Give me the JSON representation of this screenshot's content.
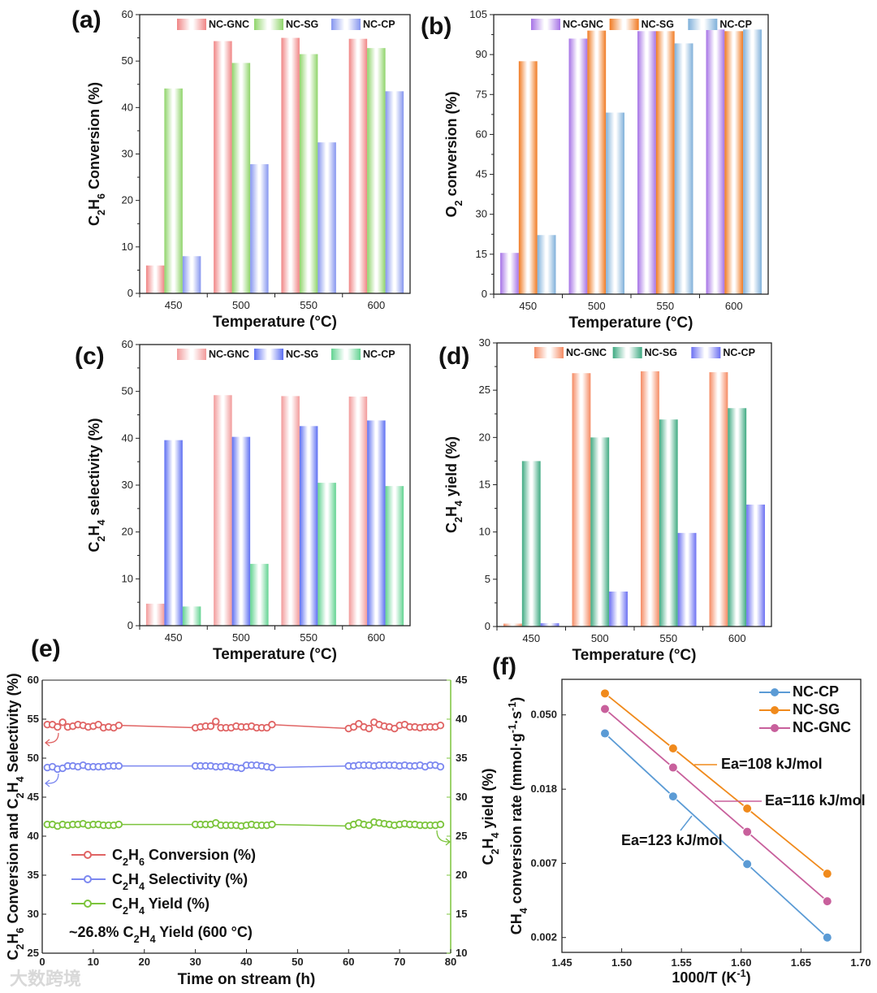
{
  "watermark": "大数跨境",
  "chart_data": [
    {
      "panel": "(a)",
      "type": "bar",
      "categories": [
        "450",
        "500",
        "550",
        "600"
      ],
      "xlabel": "Temperature (°C)",
      "ylabel": [
        [
          "C"
        ],
        [
          "2",
          "sub"
        ],
        [
          "H"
        ],
        [
          "6",
          "sub"
        ],
        [
          " Conversion (%)"
        ]
      ],
      "ylim": [
        0,
        60
      ],
      "yticks": [
        0,
        10,
        20,
        30,
        40,
        50,
        60
      ],
      "legend": "top",
      "series": [
        {
          "name": "NC-GNC",
          "color": "#f08585",
          "values": [
            6.0,
            54.3,
            55.0,
            54.8
          ]
        },
        {
          "name": "NC-SG",
          "color": "#8fd46a",
          "values": [
            44.1,
            49.6,
            51.5,
            52.8
          ]
        },
        {
          "name": "NC-CP",
          "color": "#8595ef",
          "values": [
            8.0,
            27.8,
            32.5,
            43.5
          ]
        }
      ]
    },
    {
      "panel": "(b)",
      "type": "bar",
      "categories": [
        "450",
        "500",
        "550",
        "600"
      ],
      "xlabel": "Temperature (°C)",
      "ylabel": [
        [
          "O"
        ],
        [
          "2",
          "sub"
        ],
        [
          " conversion (%)"
        ]
      ],
      "ylim": [
        0,
        105
      ],
      "yticks": [
        0,
        15,
        30,
        45,
        60,
        75,
        90,
        105
      ],
      "legend": "top",
      "series": [
        {
          "name": "NC-GNC",
          "color": "#a673e6",
          "values": [
            15.5,
            96.0,
            98.8,
            99.4
          ]
        },
        {
          "name": "NC-SG",
          "color": "#f07a22",
          "values": [
            87.5,
            99.0,
            98.8,
            98.8
          ]
        },
        {
          "name": "NC-CP",
          "color": "#7fb0da",
          "values": [
            22.2,
            68.2,
            94.2,
            99.4
          ]
        }
      ]
    },
    {
      "panel": "(c)",
      "type": "bar",
      "categories": [
        "450",
        "500",
        "550",
        "600"
      ],
      "xlabel": "Temperature (°C)",
      "ylabel": [
        [
          "C"
        ],
        [
          "2",
          "sub"
        ],
        [
          "H"
        ],
        [
          "4",
          "sub"
        ],
        [
          " selectivity (%)"
        ]
      ],
      "ylim": [
        0,
        60
      ],
      "yticks": [
        0,
        10,
        20,
        30,
        40,
        50,
        60
      ],
      "legend": "top",
      "series": [
        {
          "name": "NC-GNC",
          "color": "#f29a9a",
          "values": [
            4.7,
            49.2,
            49.0,
            48.9
          ]
        },
        {
          "name": "NC-SG",
          "color": "#5d6ff2",
          "values": [
            39.6,
            40.3,
            42.6,
            43.8
          ]
        },
        {
          "name": "NC-CP",
          "color": "#62d391",
          "values": [
            4.1,
            13.2,
            30.5,
            29.8
          ]
        }
      ]
    },
    {
      "panel": "(d)",
      "type": "bar",
      "categories": [
        "450",
        "500",
        "550",
        "600"
      ],
      "xlabel": "Temperature (°C)",
      "ylabel": [
        [
          "C"
        ],
        [
          "2",
          "sub"
        ],
        [
          "H"
        ],
        [
          "4",
          "sub"
        ],
        [
          " yield (%)"
        ]
      ],
      "ylim": [
        0,
        30
      ],
      "yticks": [
        0,
        5,
        10,
        15,
        20,
        25,
        30
      ],
      "legend": "top",
      "series": [
        {
          "name": "NC-GNC",
          "color": "#f58a62",
          "values": [
            0.3,
            26.8,
            27.0,
            26.9
          ]
        },
        {
          "name": "NC-SG",
          "color": "#3faa82",
          "values": [
            17.5,
            20.0,
            21.9,
            23.1
          ]
        },
        {
          "name": "NC-CP",
          "color": "#6b70f2",
          "values": [
            0.35,
            3.7,
            9.9,
            12.9
          ]
        }
      ]
    },
    {
      "panel": "(e)",
      "type": "line",
      "xlabel": "Time on stream (h)",
      "ylabel": [
        [
          "C"
        ],
        [
          "2",
          "sub"
        ],
        [
          "H"
        ],
        [
          "6",
          "sub"
        ],
        [
          " Conversion and C"
        ],
        [
          "2",
          "sub"
        ],
        [
          "H"
        ],
        [
          "4",
          "sub"
        ],
        [
          " Selectivity (%)"
        ]
      ],
      "ylabel_right": [
        [
          "C"
        ],
        [
          "2",
          "sub"
        ],
        [
          "H"
        ],
        [
          "4",
          "sub"
        ],
        [
          " yield (%)"
        ]
      ],
      "xlim": [
        0,
        80
      ],
      "xticks": [
        0,
        10,
        20,
        30,
        40,
        50,
        60,
        70,
        80
      ],
      "ylim": [
        25,
        60
      ],
      "yticks": [
        25,
        30,
        35,
        40,
        45,
        50,
        55,
        60
      ],
      "ylim_right": [
        10,
        45
      ],
      "yticks_right": [
        10,
        15,
        20,
        25,
        30,
        35,
        40,
        45
      ],
      "legend": "lower-left",
      "annotation": [
        [
          "~26.8% C"
        ],
        [
          "2",
          "sub"
        ],
        [
          "H"
        ],
        [
          "4",
          "sub"
        ],
        [
          " Yield (600 °C)"
        ]
      ],
      "x": [
        1,
        2,
        3,
        4,
        5,
        6,
        7,
        8,
        9,
        10,
        11,
        12,
        13,
        14,
        15,
        30,
        31,
        32,
        33,
        34,
        35,
        36,
        37,
        38,
        39,
        40,
        41,
        42,
        43,
        44,
        45,
        60,
        61,
        62,
        63,
        64,
        65,
        66,
        67,
        68,
        69,
        70,
        71,
        72,
        73,
        74,
        75,
        76,
        77,
        78
      ],
      "series": [
        {
          "name": [
            [
              "C"
            ],
            [
              "2",
              "sub"
            ],
            [
              "H"
            ],
            [
              "6",
              "sub"
            ],
            [
              " Conversion (%)"
            ]
          ],
          "axis": "left",
          "color": "#e06464",
          "values": [
            54.3,
            54.3,
            54.0,
            54.6,
            54.0,
            54.1,
            54.3,
            54.2,
            54.0,
            54.1,
            54.3,
            53.9,
            54.0,
            53.9,
            54.2,
            53.9,
            54.0,
            54.1,
            54.1,
            54.7,
            53.9,
            53.9,
            53.9,
            54.1,
            54.0,
            54.0,
            54.1,
            53.9,
            53.9,
            53.9,
            54.3,
            53.8,
            54.0,
            54.4,
            54.0,
            53.8,
            54.6,
            54.3,
            54.1,
            54.0,
            53.8,
            54.2,
            54.3,
            54.0,
            54.0,
            53.9,
            54.0,
            54.0,
            54.0,
            54.2
          ]
        },
        {
          "name": [
            [
              "C"
            ],
            [
              "2",
              "sub"
            ],
            [
              "H"
            ],
            [
              "4",
              "sub"
            ],
            [
              " Selectivity (%)"
            ]
          ],
          "axis": "left",
          "color": "#7c88f0",
          "values": [
            48.8,
            48.9,
            48.6,
            48.7,
            49.0,
            49.0,
            48.9,
            49.1,
            48.9,
            48.9,
            48.9,
            48.9,
            49.0,
            49.0,
            49.0,
            49.0,
            49.0,
            49.0,
            49.0,
            48.9,
            48.9,
            49.0,
            48.9,
            48.8,
            48.7,
            49.1,
            49.1,
            49.1,
            49.0,
            48.9,
            48.8,
            49.0,
            49.0,
            49.1,
            49.1,
            49.1,
            49.0,
            49.1,
            49.1,
            49.1,
            49.1,
            49.0,
            49.1,
            49.0,
            49.0,
            49.1,
            48.9,
            49.1,
            49.1,
            48.9
          ]
        },
        {
          "name": [
            [
              "C"
            ],
            [
              "2",
              "sub"
            ],
            [
              "H"
            ],
            [
              "4",
              "sub"
            ],
            [
              " Yield (%)"
            ]
          ],
          "axis": "right",
          "color": "#7cc43c",
          "values": [
            26.5,
            26.5,
            26.3,
            26.5,
            26.4,
            26.5,
            26.5,
            26.6,
            26.4,
            26.5,
            26.5,
            26.4,
            26.4,
            26.4,
            26.5,
            26.5,
            26.5,
            26.5,
            26.5,
            26.7,
            26.4,
            26.4,
            26.4,
            26.4,
            26.3,
            26.4,
            26.5,
            26.4,
            26.4,
            26.4,
            26.5,
            26.3,
            26.5,
            26.7,
            26.5,
            26.4,
            26.8,
            26.7,
            26.6,
            26.5,
            26.4,
            26.5,
            26.6,
            26.5,
            26.5,
            26.4,
            26.4,
            26.4,
            26.4,
            26.5
          ]
        }
      ]
    },
    {
      "panel": "(f)",
      "type": "line",
      "xlabel": [
        [
          "1000/T (K"
        ],
        [
          "-1",
          "sup"
        ],
        [
          ")"
        ]
      ],
      "ylabel": [
        [
          "CH"
        ],
        [
          "4",
          "sub"
        ],
        [
          " conversion rate (mmol·g"
        ],
        [
          "-1",
          "sup"
        ],
        [
          "·s"
        ],
        [
          "-1",
          "sup"
        ],
        [
          ")"
        ]
      ],
      "xlim": [
        1.45,
        1.7
      ],
      "xticks": [
        "1.45",
        "1.50",
        "1.55",
        "1.60",
        "1.65",
        "1.70"
      ],
      "yscale": "log",
      "ylim": [
        0.00203,
        0.0804
      ],
      "yticks": [
        {
          "label": "0.002",
          "value": 0.00248
        },
        {
          "label": "0.007",
          "value": 0.00674
        },
        {
          "label": "0.018",
          "value": 0.0183
        },
        {
          "label": "0.050",
          "value": 0.0498
        }
      ],
      "legend": "top-right",
      "x": [
        1.486,
        1.543,
        1.605,
        1.672
      ],
      "series": [
        {
          "name": "NC-CP",
          "color": "#5b9bd5",
          "values": [
            0.0388,
            0.0166,
            0.00667,
            0.00248
          ],
          "ea": "Ea=123 kJ/mol"
        },
        {
          "name": "NC-SG",
          "color": "#f08a1c",
          "values": [
            0.0665,
            0.0317,
            0.0141,
            0.00586
          ],
          "ea": "Ea=108 kJ/mol"
        },
        {
          "name": "NC-GNC",
          "color": "#c8609c",
          "values": [
            0.0539,
            0.0245,
            0.0103,
            0.00404
          ],
          "ea": "Ea=116 kJ/mol"
        }
      ]
    }
  ]
}
